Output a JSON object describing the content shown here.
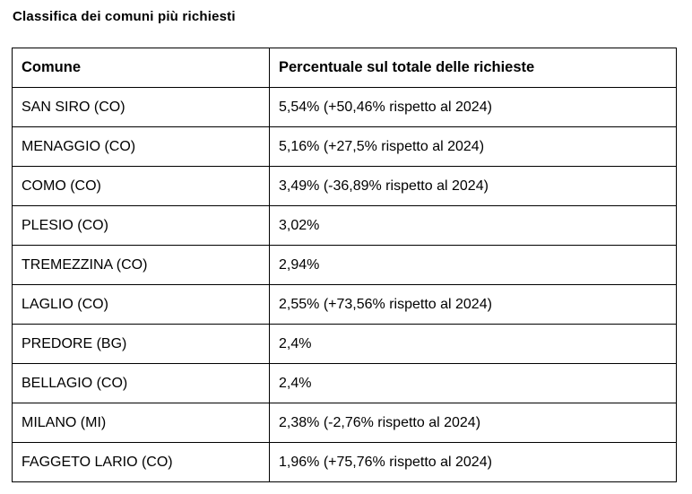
{
  "title": "Classifica dei comuni più richiesti",
  "colors": {
    "background": "#ffffff",
    "text": "#000000",
    "border": "#000000"
  },
  "table": {
    "headers": {
      "comune": "Comune",
      "percentuale": "Percentuale sul totale delle richieste"
    },
    "rows": [
      {
        "comune": "SAN SIRO (CO)",
        "percentuale": "5,54% (+50,46% rispetto al 2024)"
      },
      {
        "comune": "MENAGGIO (CO)",
        "percentuale": "5,16% (+27,5% rispetto al 2024)"
      },
      {
        "comune": "COMO (CO)",
        "percentuale": "3,49% (-36,89% rispetto al 2024)"
      },
      {
        "comune": "PLESIO (CO)",
        "percentuale": "3,02%"
      },
      {
        "comune": "TREMEZZINA (CO)",
        "percentuale": "2,94%"
      },
      {
        "comune": "LAGLIO (CO)",
        "percentuale": "2,55% (+73,56% rispetto al 2024)"
      },
      {
        "comune": "PREDORE (BG)",
        "percentuale": "2,4%"
      },
      {
        "comune": "BELLAGIO (CO)",
        "percentuale": "2,4%"
      },
      {
        "comune": "MILANO (MI)",
        "percentuale": "2,38% (-2,76% rispetto al 2024)"
      },
      {
        "comune": "FAGGETO LARIO (CO)",
        "percentuale": "1,96% (+75,76% rispetto al 2024)"
      }
    ]
  },
  "chart_data": {
    "type": "table",
    "title": "Classifica dei comuni più richiesti",
    "columns": [
      "Comune",
      "Percentuale sul totale delle richieste"
    ],
    "categories": [
      "SAN SIRO (CO)",
      "MENAGGIO (CO)",
      "COMO (CO)",
      "PLESIO (CO)",
      "TREMEZZINA (CO)",
      "LAGLIO (CO)",
      "PREDORE (BG)",
      "BELLAGIO (CO)",
      "MILANO (MI)",
      "FAGGETO LARIO (CO)"
    ],
    "values_percent": [
      5.54,
      5.16,
      3.49,
      3.02,
      2.94,
      2.55,
      2.4,
      2.4,
      2.38,
      1.96
    ],
    "change_vs_2024_percent": [
      50.46,
      27.5,
      -36.89,
      null,
      null,
      73.56,
      null,
      null,
      -2.76,
      75.76
    ]
  }
}
